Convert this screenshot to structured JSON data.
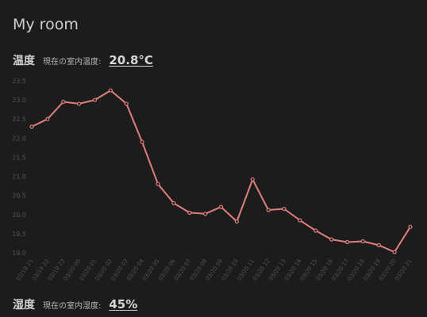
{
  "page": {
    "title": "My room"
  },
  "temperature": {
    "heading": "温度",
    "caption": "現在の室内温度:",
    "value": "20.8°C"
  },
  "humidity": {
    "heading": "湿度",
    "caption": "現在の室内湿度:",
    "value": "45%"
  },
  "colors": {
    "line": "#e07f7c",
    "axis_text": "#555555",
    "background": "#1c1c1c"
  },
  "chart_data": {
    "type": "line",
    "categories": [
      "03/19 21",
      "03/19 22",
      "03/19 23",
      "03/20 00",
      "03/20 01",
      "03/20 02",
      "03/20 03",
      "03/20 04",
      "03/20 05",
      "03/20 06",
      "03/20 07",
      "03/20 08",
      "03/20 09",
      "03/20 10",
      "03/20 11",
      "03/20 12",
      "03/20 13",
      "03/20 14",
      "03/20 15",
      "03/20 16",
      "03/20 17",
      "03/20 18",
      "03/20 19",
      "03/20 20",
      "03/20 21"
    ],
    "series": [
      {
        "values": [
          22.3,
          22.5,
          22.95,
          22.9,
          23.0,
          23.25,
          22.9,
          21.9,
          20.8,
          20.3,
          20.05,
          20.02,
          20.2,
          19.82,
          20.92,
          20.12,
          20.15,
          19.85,
          19.58,
          19.35,
          19.28,
          19.3,
          19.2,
          19.02,
          19.68
        ]
      }
    ],
    "y_ticks": [
      "19.0",
      "19.5",
      "20.0",
      "20.5",
      "21.0",
      "21.5",
      "22.0",
      "22.5",
      "23.0",
      "23.5"
    ],
    "ylim": [
      19.0,
      23.5
    ],
    "grid": false,
    "legend": "none"
  }
}
